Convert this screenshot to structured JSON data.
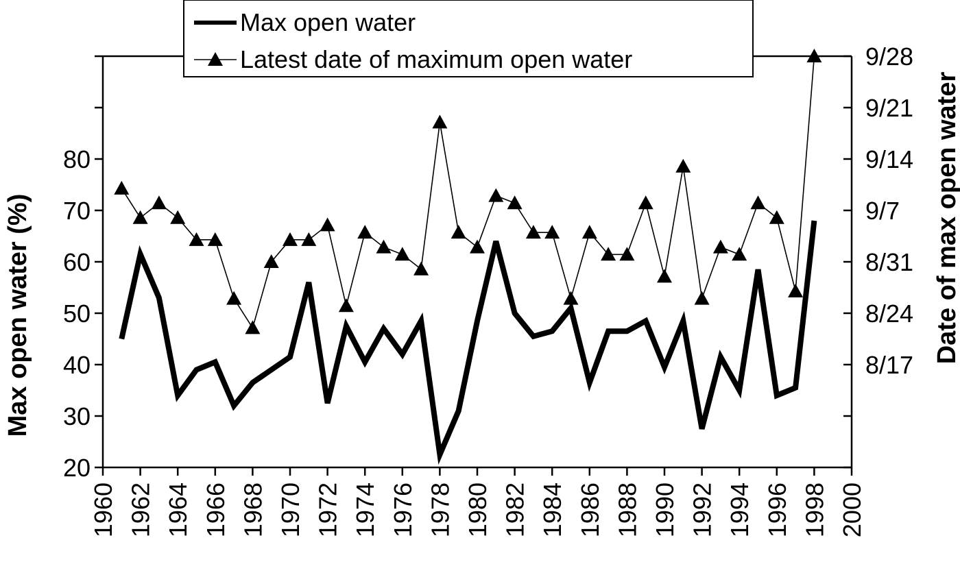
{
  "chart_data": {
    "type": "line",
    "xlabel": "",
    "ylabel": "Max open water (%)",
    "y2label": "Date of max open water",
    "xlim": [
      1960,
      2000
    ],
    "ylim": [
      20,
      100
    ],
    "y2lim": [
      "8/3",
      "9/28"
    ],
    "x_ticks": [
      "1960",
      "1962",
      "1964",
      "1966",
      "1968",
      "1970",
      "1972",
      "1974",
      "1976",
      "1978",
      "1980",
      "1982",
      "1984",
      "1986",
      "1988",
      "1990",
      "1992",
      "1994",
      "1996",
      "1998",
      "2000"
    ],
    "y_ticks": [
      "20",
      "30",
      "40",
      "50",
      "60",
      "70",
      "80"
    ],
    "y2_ticks": [
      "8/17",
      "8/24",
      "8/31",
      "9/7",
      "9/14",
      "9/21",
      "9/28"
    ],
    "legend_position": "top-center",
    "grid": false,
    "series": [
      {
        "name": "Max open water",
        "axis": "left",
        "style": "thick line",
        "x": [
          1961,
          1962,
          1963,
          1964,
          1965,
          1966,
          1967,
          1968,
          1969,
          1970,
          1971,
          1972,
          1973,
          1974,
          1975,
          1976,
          1977,
          1978,
          1979,
          1980,
          1981,
          1982,
          1983,
          1984,
          1985,
          1986,
          1987,
          1988,
          1989,
          1990,
          1991,
          1992,
          1993,
          1994,
          1995,
          1996,
          1997,
          1998
        ],
        "values": [
          45,
          61.5,
          53,
          34,
          39,
          40.5,
          32,
          36.5,
          39,
          41.5,
          56,
          32.5,
          47.5,
          40.5,
          47,
          42,
          48.5,
          22.5,
          31,
          48.5,
          64,
          50,
          45.5,
          46.5,
          51,
          36.5,
          46.5,
          46.5,
          48.5,
          39.5,
          48.5,
          27.5,
          41.5,
          35,
          58.5,
          34,
          35.5,
          68
        ]
      },
      {
        "name": "Latest date of maximum open water",
        "axis": "right",
        "style": "thin line with triangle markers",
        "x": [
          1961,
          1962,
          1963,
          1964,
          1965,
          1966,
          1967,
          1968,
          1969,
          1970,
          1971,
          1972,
          1973,
          1974,
          1975,
          1976,
          1977,
          1978,
          1979,
          1980,
          1981,
          1982,
          1983,
          1984,
          1985,
          1986,
          1987,
          1988,
          1989,
          1990,
          1991,
          1992,
          1993,
          1994,
          1995,
          1996,
          1997,
          1998
        ],
        "values": [
          "9/10",
          "9/6",
          "9/8",
          "9/6",
          "9/3",
          "9/3",
          "8/26",
          "8/22",
          "8/31",
          "9/3",
          "9/3",
          "9/5",
          "8/25",
          "9/4",
          "9/2",
          "9/1",
          "8/30",
          "9/19",
          "9/4",
          "9/2",
          "9/9",
          "9/8",
          "9/4",
          "9/4",
          "8/26",
          "9/4",
          "9/1",
          "9/1",
          "9/8",
          "8/29",
          "9/13",
          "8/26",
          "9/2",
          "9/1",
          "9/8",
          "9/6",
          "8/27",
          "9/28"
        ]
      }
    ]
  }
}
